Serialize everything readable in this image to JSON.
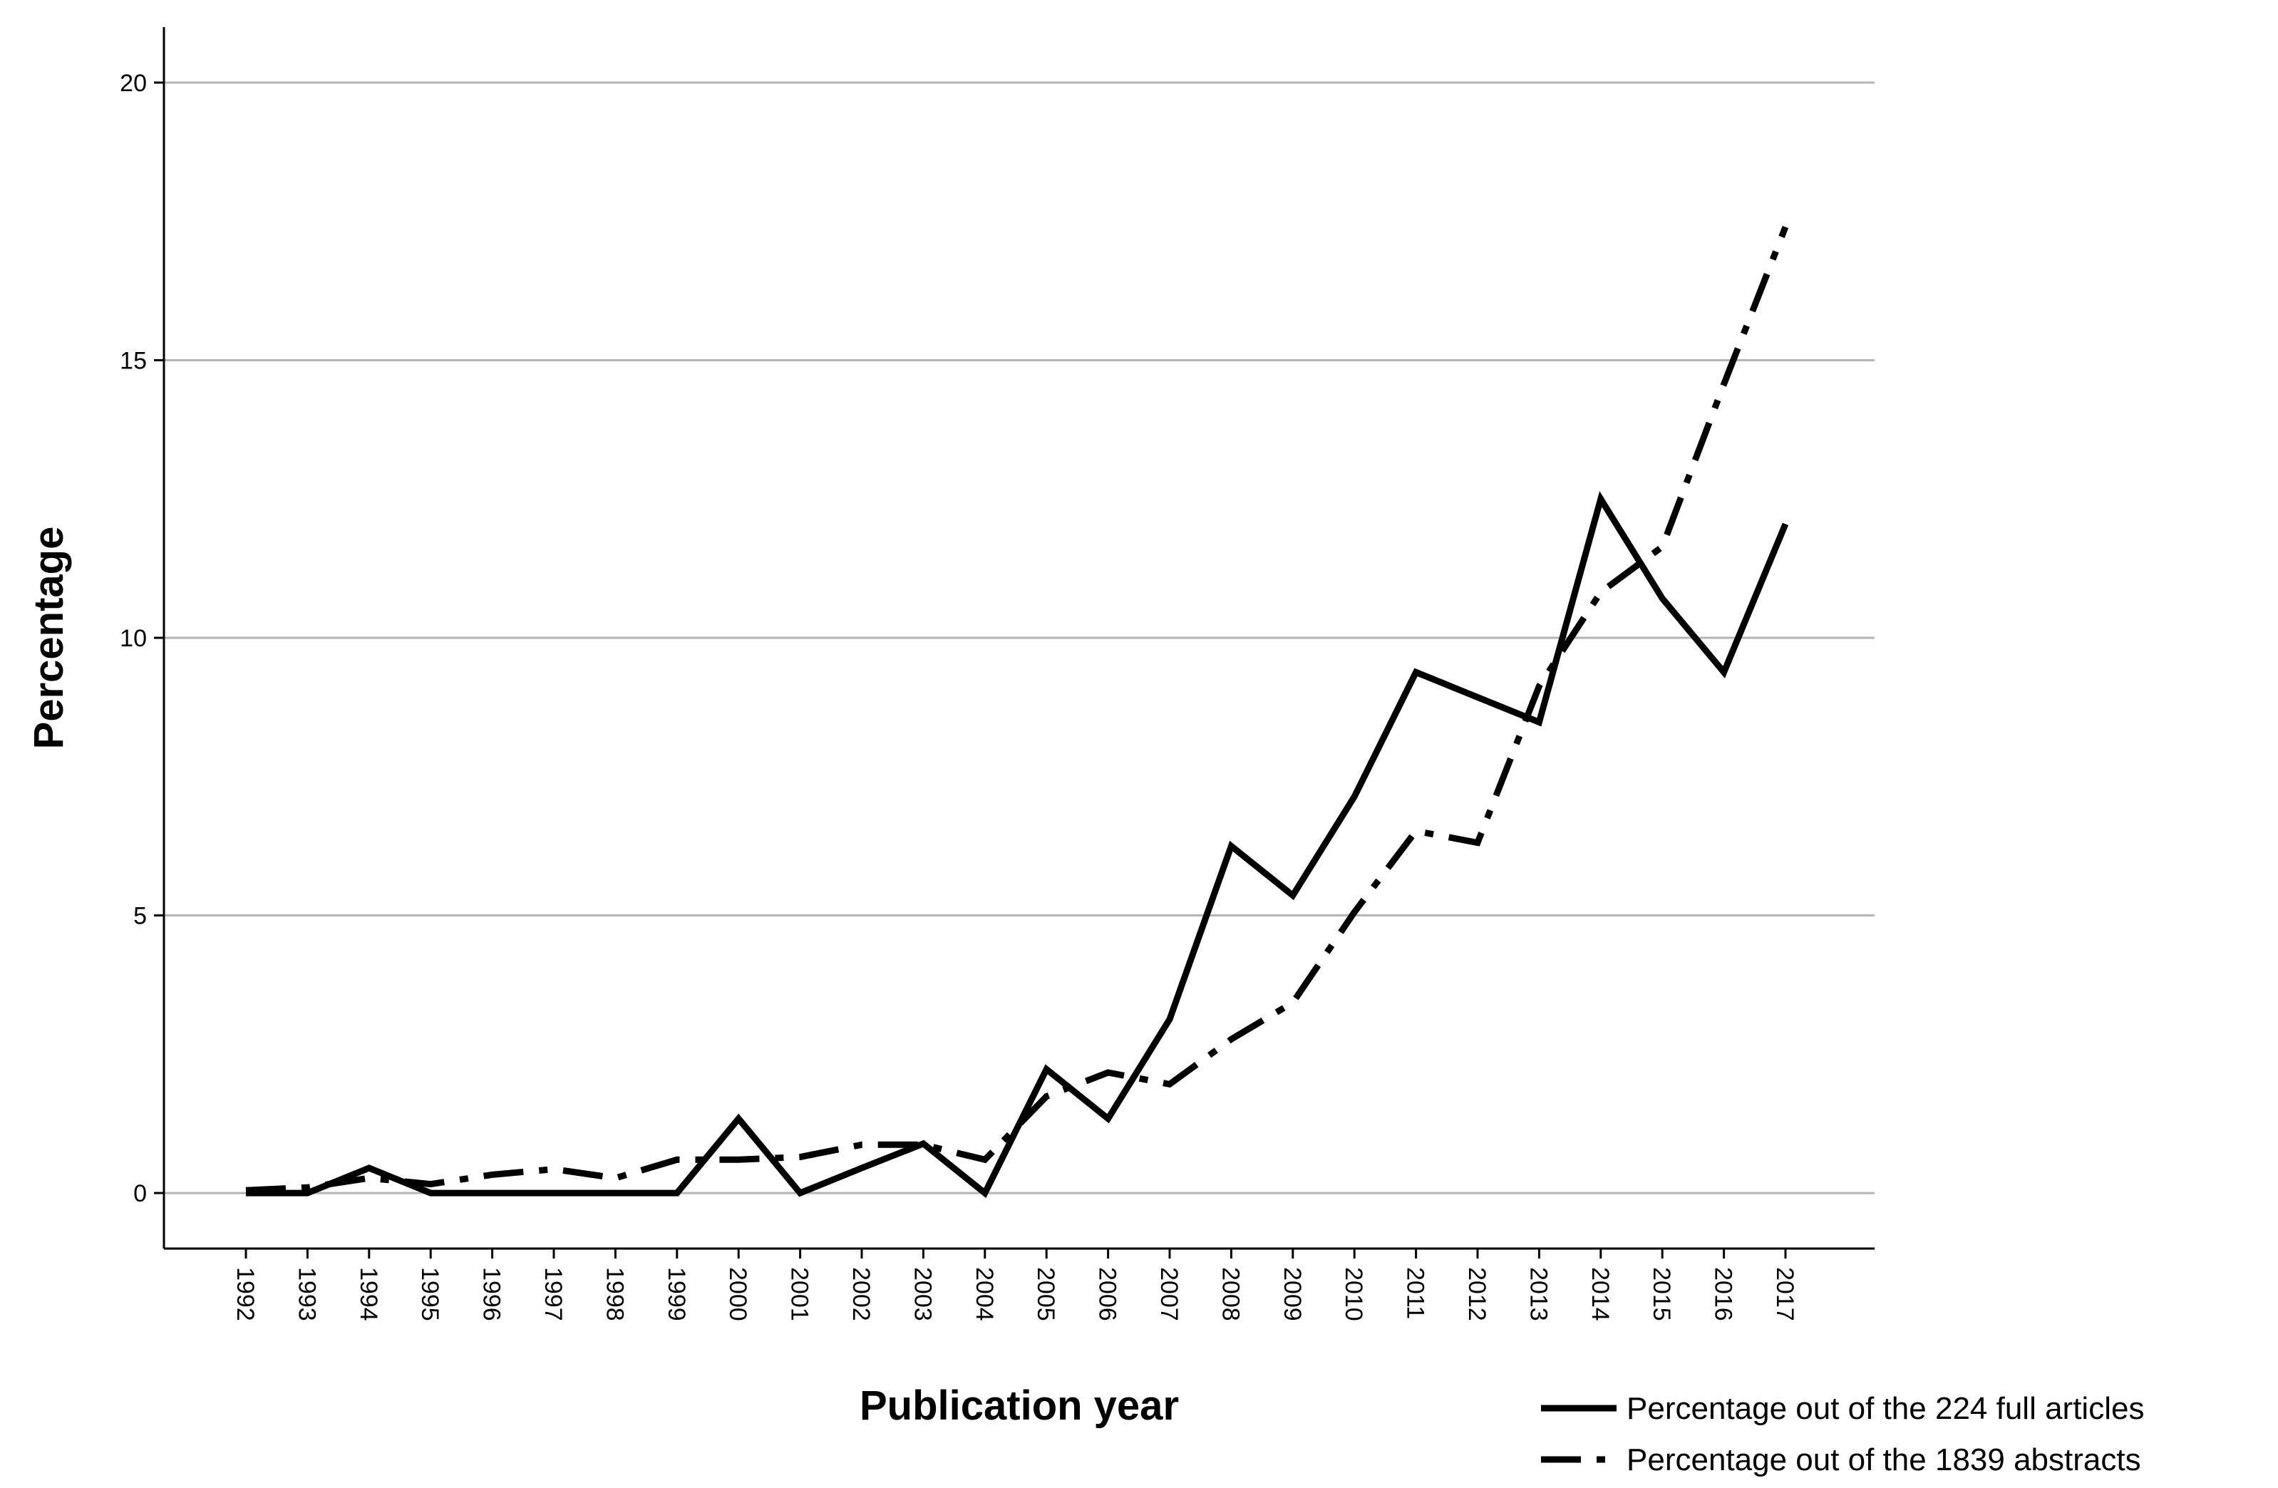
{
  "chart_data": {
    "type": "line",
    "xlabel": "Publication year",
    "ylabel": "Percentage",
    "x": [
      "1992",
      "1993",
      "1994",
      "1995",
      "1996",
      "1997",
      "1998",
      "1999",
      "2000",
      "2001",
      "2002",
      "2003",
      "2004",
      "2005",
      "2006",
      "2007",
      "2008",
      "2009",
      "2010",
      "2011",
      "2012",
      "2013",
      "2014",
      "2015",
      "2016",
      "2017"
    ],
    "ylim": [
      -1,
      21
    ],
    "yticks": [
      0,
      5,
      10,
      15,
      20
    ],
    "grid": true,
    "legend_position": "bottom-right",
    "series": [
      {
        "name": "Percentage out of the 224 full articles",
        "style": "solid",
        "values": [
          0.0,
          0.0,
          0.45,
          0.0,
          0.0,
          0.0,
          0.0,
          0.0,
          1.34,
          0.0,
          0.45,
          0.89,
          0.0,
          2.23,
          1.34,
          3.13,
          6.25,
          5.36,
          7.14,
          9.38,
          8.93,
          8.48,
          12.5,
          10.71,
          9.38,
          12.05
        ]
      },
      {
        "name": "Percentage out of the 1839 abstracts",
        "style": "dashdot",
        "values": [
          0.05,
          0.1,
          0.27,
          0.16,
          0.33,
          0.43,
          0.27,
          0.6,
          0.6,
          0.65,
          0.87,
          0.87,
          0.6,
          1.74,
          2.17,
          1.96,
          2.77,
          3.43,
          5.06,
          6.52,
          6.31,
          9.13,
          10.82,
          11.64,
          14.57,
          17.4
        ]
      }
    ]
  }
}
